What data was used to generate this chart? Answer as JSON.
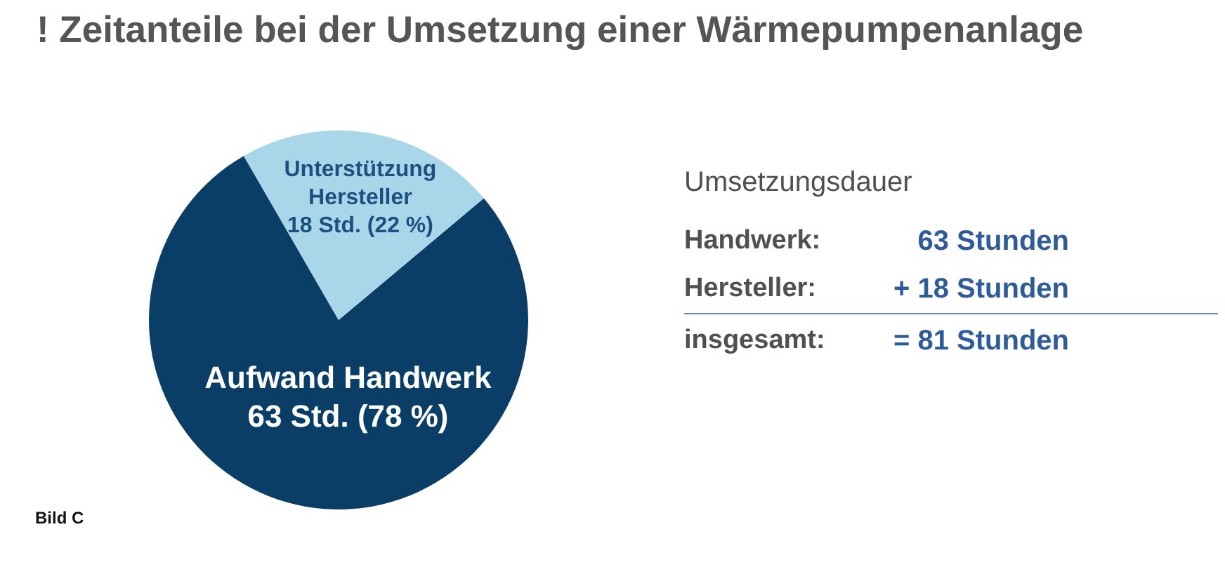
{
  "chart_data": [
    {
      "type": "pie",
      "title": "! Zeitanteile bei der Umsetzung einer Wärmepumpenanlage",
      "categories": [
        "Aufwand Handwerk",
        "Unterstützung Hersteller"
      ],
      "values": [
        63,
        18
      ],
      "colors": [
        "#0b3e66",
        "#a9d7e9"
      ],
      "value_labels": [
        "63 Std. (78 %)",
        "18 Std. (22 %)"
      ],
      "annotations": [
        "Bild C"
      ]
    },
    {
      "type": "other",
      "title": "Umsetzungsdauer",
      "annotations": [
        "Handwerk:",
        "63 Stunden",
        "Hersteller:",
        "+ 18 Stunden",
        "insgesamt:",
        "= 81 Stunden"
      ]
    }
  ]
}
